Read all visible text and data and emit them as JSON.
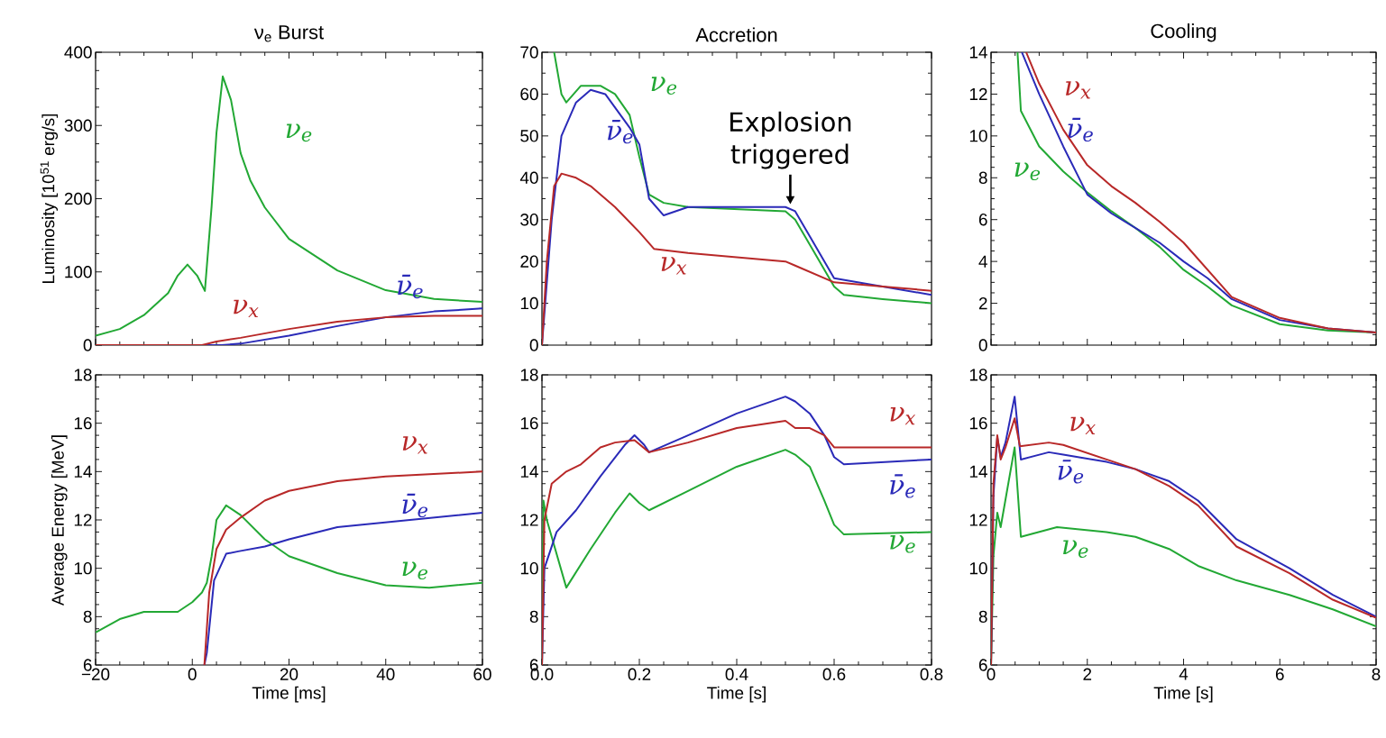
{
  "chart_data": [
    {
      "type": "line",
      "title": "ν$_{e}$ Burst",
      "ylabel": "Luminosity  [10$^{51}$ erg/s]",
      "xlim": [
        -20,
        60
      ],
      "ylim": [
        0,
        400
      ],
      "xticks": [
        -20,
        0,
        20,
        40,
        60
      ],
      "yticks": [
        0,
        100,
        200,
        300,
        400
      ],
      "tick_labels": "y",
      "series": [
        {
          "name": "ν$_{e}$",
          "color": "#22a834",
          "x": [
            -20,
            -15,
            -10,
            -5,
            -3,
            -1,
            1,
            2.6,
            4,
            5,
            6.3,
            8,
            10,
            12,
            15,
            20,
            30,
            40,
            50,
            60
          ],
          "values": [
            13,
            22,
            41,
            71,
            95,
            110,
            95,
            74,
            190,
            290,
            367,
            335,
            262,
            225,
            188,
            145,
            102,
            75,
            63,
            59
          ]
        },
        {
          "name": "ν̄$_{e}$",
          "color": "#2a2ab8",
          "x": [
            -20,
            6,
            10,
            20,
            30,
            40,
            50,
            60
          ],
          "values": [
            0,
            0,
            2,
            13,
            26,
            38,
            46,
            50
          ]
        },
        {
          "name": "ν$_{x}$",
          "color": "#b82828",
          "x": [
            -20,
            2,
            5,
            10,
            20,
            30,
            40,
            50,
            60
          ],
          "values": [
            0,
            0,
            5,
            10,
            22,
            32,
            38,
            40,
            40
          ]
        }
      ]
    },
    {
      "type": "line",
      "title": "Accretion",
      "xlim": [
        0,
        0.8
      ],
      "ylim": [
        0,
        70
      ],
      "xticks": [
        0,
        0.2,
        0.4,
        0.6,
        0.8
      ],
      "yticks": [
        0,
        10,
        20,
        30,
        40,
        50,
        60,
        70
      ],
      "tick_labels": "y",
      "annotations": [
        {
          "text": "Explosion triggered",
          "x": 0.51,
          "y": 33
        }
      ],
      "series": [
        {
          "name": "ν$_{e}$",
          "color": "#22a834",
          "x": [
            0.025,
            0.04,
            0.05,
            0.08,
            0.12,
            0.15,
            0.18,
            0.2,
            0.22,
            0.25,
            0.3,
            0.5,
            0.52,
            0.56,
            0.6,
            0.62,
            0.7,
            0.8
          ],
          "values": [
            70,
            60,
            58,
            62,
            62,
            60,
            55,
            45,
            36,
            34,
            33,
            32,
            30,
            22,
            14,
            12,
            11,
            10
          ]
        },
        {
          "name": "ν̄$_{e}$",
          "color": "#2a2ab8",
          "x": [
            0,
            0.02,
            0.04,
            0.07,
            0.1,
            0.13,
            0.18,
            0.2,
            0.22,
            0.25,
            0.3,
            0.5,
            0.52,
            0.55,
            0.6,
            0.7,
            0.8
          ],
          "values": [
            0,
            30,
            50,
            58,
            61,
            60,
            52,
            48,
            35,
            31,
            33,
            33,
            32,
            26,
            16,
            14,
            12
          ]
        },
        {
          "name": "ν$_{x}$",
          "color": "#b82828",
          "x": [
            0,
            0.01,
            0.025,
            0.04,
            0.07,
            0.1,
            0.15,
            0.2,
            0.23,
            0.3,
            0.5,
            0.52,
            0.6,
            0.7,
            0.8
          ],
          "values": [
            0,
            20,
            38,
            41,
            40,
            38,
            33,
            27,
            23,
            22,
            20,
            19,
            15,
            14,
            13
          ]
        }
      ]
    },
    {
      "type": "line",
      "title": "Cooling",
      "xlim": [
        0,
        8
      ],
      "ylim": [
        0,
        14
      ],
      "xticks": [
        0,
        2,
        4,
        6,
        8
      ],
      "yticks": [
        0,
        2,
        4,
        6,
        8,
        10,
        12,
        14
      ],
      "tick_labels": "y",
      "series": [
        {
          "name": "ν$_{e}$",
          "color": "#22a834",
          "x": [
            0.55,
            0.62,
            1,
            1.5,
            2,
            2.5,
            3,
            3.5,
            4,
            4.5,
            5,
            6,
            7,
            8
          ],
          "values": [
            14,
            11.2,
            9.5,
            8.3,
            7.3,
            6.4,
            5.6,
            4.7,
            3.6,
            2.8,
            1.9,
            1.0,
            0.7,
            0.6
          ]
        },
        {
          "name": "ν̄$_{e}$",
          "color": "#2a2ab8",
          "x": [
            0.64,
            1,
            1.5,
            2,
            2.5,
            3,
            3.5,
            4,
            4.5,
            5,
            6,
            7,
            8
          ],
          "values": [
            14,
            12,
            9.5,
            7.2,
            6.3,
            5.6,
            4.9,
            4.0,
            3.2,
            2.2,
            1.2,
            0.8,
            0.6
          ]
        },
        {
          "name": "ν$_{x}$",
          "color": "#b82828",
          "x": [
            0.73,
            1,
            1.5,
            2,
            2.5,
            3,
            3.5,
            4,
            4.5,
            5,
            6,
            7,
            8
          ],
          "values": [
            14,
            12.5,
            10.3,
            8.6,
            7.6,
            6.8,
            5.9,
            4.9,
            3.6,
            2.3,
            1.3,
            0.8,
            0.6
          ]
        }
      ]
    },
    {
      "type": "line",
      "xlabel": "Time  [ms]",
      "ylabel": "Average Energy  [MeV]",
      "xlim": [
        -20,
        60
      ],
      "ylim": [
        6,
        18
      ],
      "xticks": [
        {
          "value": -20,
          "label": "−20"
        },
        0,
        20,
        40,
        60
      ],
      "yticks": [
        6,
        8,
        10,
        12,
        14,
        16,
        18
      ],
      "series": [
        {
          "name": "ν$_{e}$",
          "color": "#22a834",
          "x": [
            -20,
            -15,
            -10,
            -5,
            -3,
            0,
            2,
            3,
            4,
            5,
            7,
            10,
            15,
            20,
            30,
            40,
            49,
            60
          ],
          "values": [
            7.35,
            7.9,
            8.2,
            8.2,
            8.2,
            8.6,
            9.0,
            9.4,
            10.5,
            12.0,
            12.6,
            12.2,
            11.2,
            10.5,
            9.8,
            9.3,
            9.2,
            9.4
          ]
        },
        {
          "name": "ν̄$_{e}$",
          "color": "#2a2ab8",
          "x": [
            2.5,
            3,
            4.5,
            7,
            9.5,
            15,
            20,
            30,
            40,
            50,
            60
          ],
          "values": [
            6,
            6.5,
            9.5,
            10.6,
            10.7,
            10.9,
            11.2,
            11.7,
            11.9,
            12.1,
            12.3
          ]
        },
        {
          "name": "ν$_{x}$",
          "color": "#b82828",
          "x": [
            2.5,
            3.5,
            5,
            7,
            10,
            15,
            20,
            30,
            40,
            50,
            60
          ],
          "values": [
            6,
            9,
            10.8,
            11.6,
            12.1,
            12.8,
            13.2,
            13.6,
            13.8,
            13.9,
            14.0
          ]
        }
      ]
    },
    {
      "type": "line",
      "xlabel": "Time  [s]",
      "xlim": [
        0,
        0.8
      ],
      "ylim": [
        6,
        18
      ],
      "xticks": [
        {
          "value": 0,
          "label": "0.0"
        },
        0.2,
        0.4,
        0.6,
        0.8
      ],
      "yticks": [
        6,
        8,
        10,
        12,
        14,
        16,
        18
      ],
      "series": [
        {
          "name": "ν$_{e}$",
          "color": "#22a834",
          "x": [
            0,
            0.003,
            0.01,
            0.05,
            0.1,
            0.15,
            0.18,
            0.2,
            0.22,
            0.3,
            0.4,
            0.5,
            0.52,
            0.55,
            0.58,
            0.6,
            0.62,
            0.8
          ],
          "values": [
            6,
            12.8,
            12,
            9.2,
            10.8,
            12.3,
            13.1,
            12.7,
            12.4,
            13.2,
            14.2,
            14.9,
            14.7,
            14.2,
            12.8,
            11.8,
            11.4,
            11.5
          ]
        },
        {
          "name": "ν̄$_{e}$",
          "color": "#2a2ab8",
          "x": [
            0,
            0.005,
            0.03,
            0.07,
            0.12,
            0.17,
            0.19,
            0.21,
            0.22,
            0.3,
            0.4,
            0.5,
            0.52,
            0.55,
            0.58,
            0.6,
            0.62,
            0.8
          ],
          "values": [
            6,
            10,
            11.5,
            12.4,
            13.8,
            15.1,
            15.5,
            15.1,
            14.8,
            15.5,
            16.4,
            17.1,
            16.9,
            16.4,
            15.5,
            14.6,
            14.3,
            14.5
          ]
        },
        {
          "name": "ν$_{x}$",
          "color": "#b82828",
          "x": [
            0,
            0.005,
            0.02,
            0.05,
            0.08,
            0.12,
            0.15,
            0.19,
            0.22,
            0.3,
            0.4,
            0.5,
            0.52,
            0.55,
            0.58,
            0.6,
            0.65,
            0.8
          ],
          "values": [
            6,
            12,
            13.5,
            14,
            14.3,
            15,
            15.2,
            15.3,
            14.8,
            15.2,
            15.8,
            16.1,
            15.8,
            15.8,
            15.5,
            15.0,
            15.0,
            15.0
          ]
        }
      ]
    },
    {
      "type": "line",
      "xlabel": "Time  [s]",
      "xlim": [
        0,
        8
      ],
      "ylim": [
        6,
        18
      ],
      "xticks": [
        0,
        2,
        4,
        6,
        8
      ],
      "yticks": [
        6,
        8,
        10,
        12,
        14,
        16,
        18
      ],
      "series": [
        {
          "name": "ν$_{e}$",
          "color": "#22a834",
          "x": [
            0,
            0.05,
            0.13,
            0.2,
            0.49,
            0.62,
            1.37,
            2.4,
            3,
            3.7,
            4.3,
            5.1,
            6.2,
            7.1,
            8
          ],
          "values": [
            6,
            10.5,
            12.3,
            11.7,
            15.0,
            11.3,
            11.7,
            11.5,
            11.3,
            10.8,
            10.1,
            9.5,
            8.9,
            8.3,
            7.6
          ]
        },
        {
          "name": "ν̄$_{e}$",
          "color": "#2a2ab8",
          "x": [
            0,
            0.05,
            0.13,
            0.2,
            0.3,
            0.49,
            0.62,
            1.2,
            1.5,
            2.4,
            3,
            3.7,
            4.3,
            5.1,
            6.2,
            7.1,
            8
          ],
          "values": [
            6,
            13,
            15.4,
            14.6,
            15.2,
            17.1,
            14.5,
            14.8,
            14.7,
            14.4,
            14.1,
            13.6,
            12.8,
            11.2,
            10.0,
            8.9,
            8.0
          ]
        },
        {
          "name": "ν$_{x}$",
          "color": "#b82828",
          "x": [
            0,
            0.05,
            0.13,
            0.2,
            0.3,
            0.49,
            0.6,
            1.2,
            1.5,
            2.4,
            3,
            3.7,
            4.3,
            5.1,
            6.2,
            7.1,
            8
          ],
          "values": [
            6,
            13.5,
            15.5,
            14.5,
            15.0,
            16.2,
            15.05,
            15.2,
            15.1,
            14.5,
            14.1,
            13.4,
            12.6,
            10.9,
            9.8,
            8.7,
            7.95
          ]
        }
      ]
    }
  ]
}
